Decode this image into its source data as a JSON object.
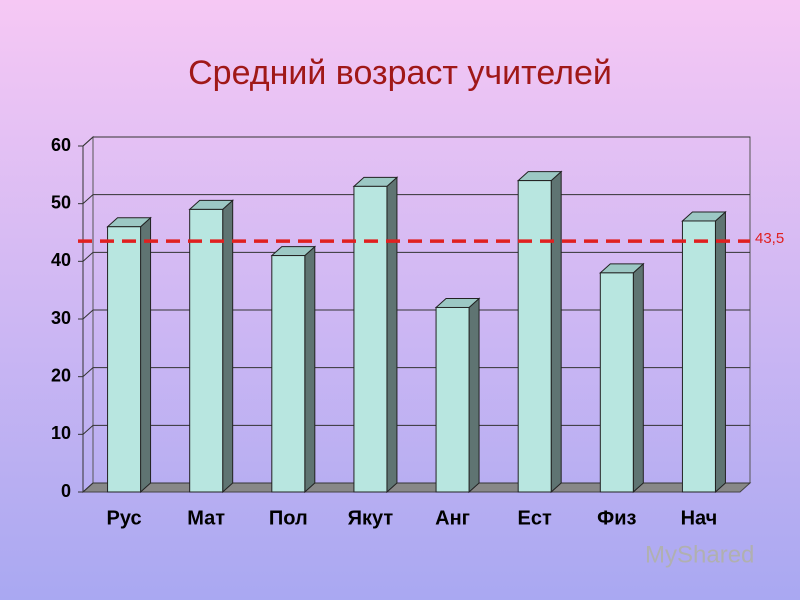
{
  "chart_data": {
    "type": "bar",
    "title": "Средний возраст учителей",
    "categories": [
      "Рус",
      "Мат",
      "Пол",
      "Якут",
      "Анг",
      "Ест",
      "Физ",
      "Нач"
    ],
    "values": [
      46,
      49,
      41,
      53,
      32,
      54,
      38,
      47
    ],
    "color": "#b8e6e0",
    "ylim": [
      0,
      60
    ],
    "yticks": [
      0,
      10,
      20,
      30,
      40,
      50,
      60
    ],
    "grid": true,
    "reference_line": {
      "value": 43.5,
      "label": "43,5",
      "color": "#e02020"
    },
    "watermark": "MyShared"
  }
}
